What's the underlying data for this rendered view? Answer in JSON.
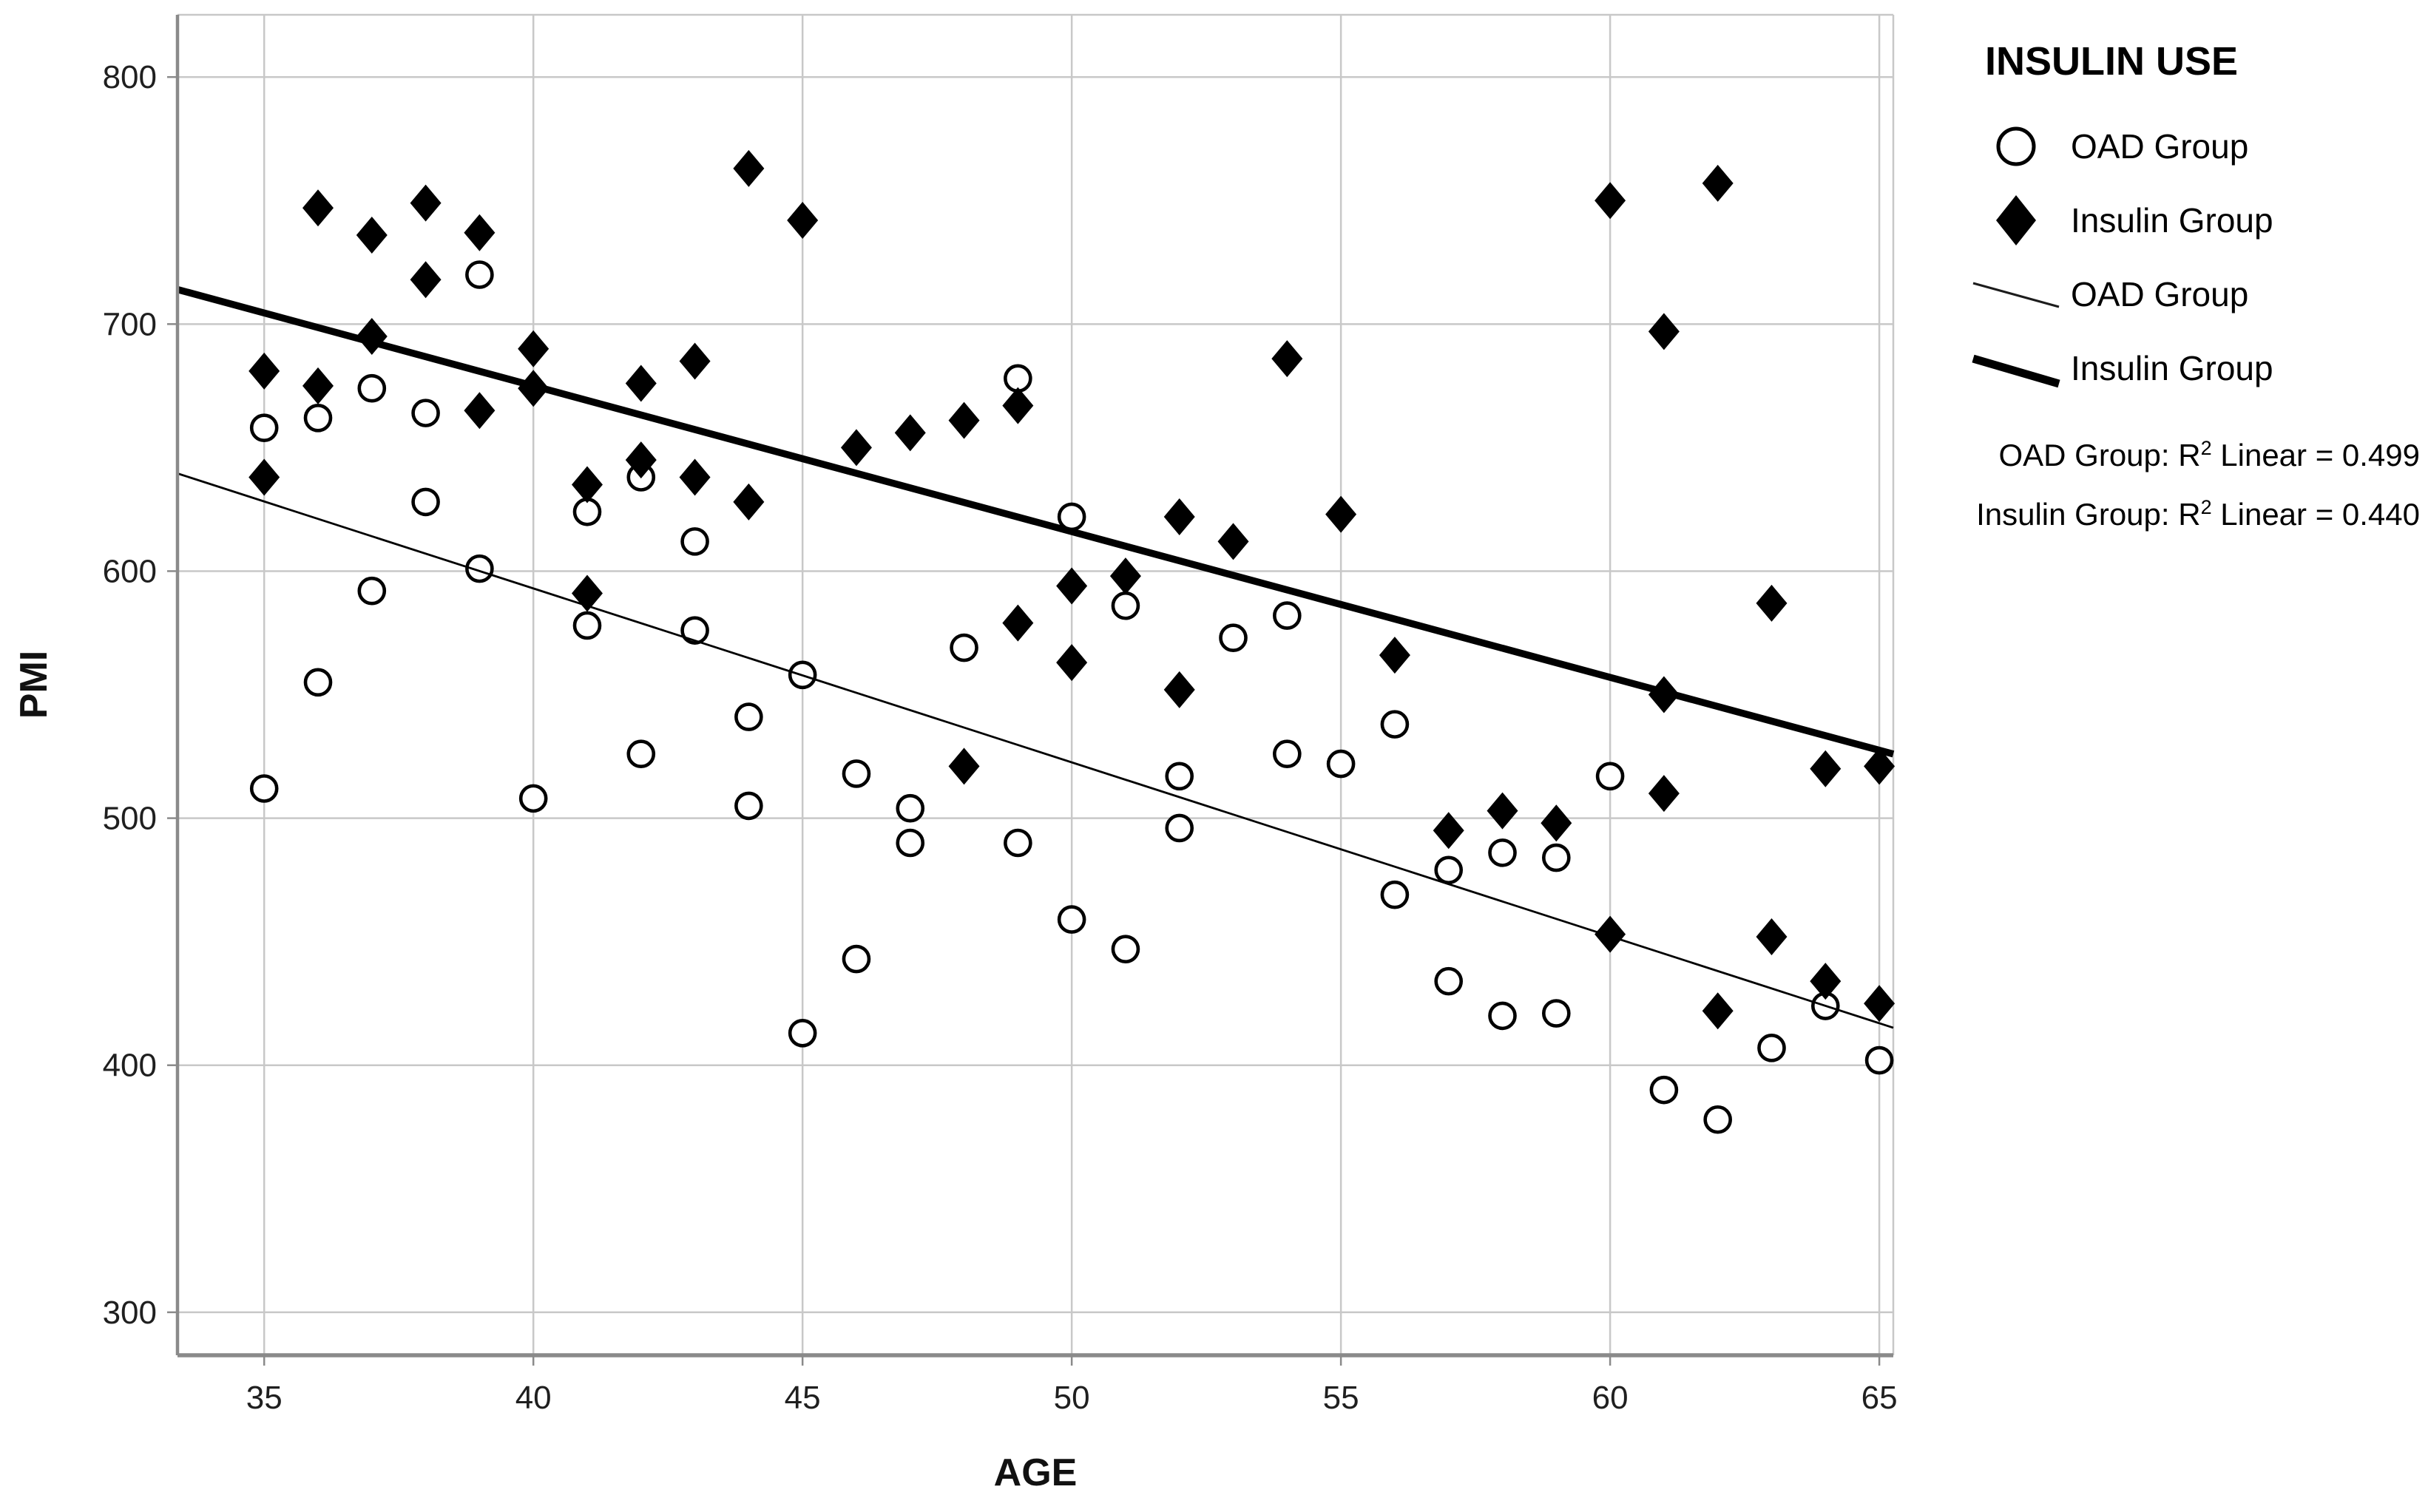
{
  "page": {
    "background": "#ffffff"
  },
  "colors": {
    "marker": "#000000",
    "gridline": "#c8c8c8",
    "axis": "#8a8a8a",
    "text": "#1a1a1a"
  },
  "figure": {
    "legend": {
      "title": "INSULIN USE",
      "items": [
        {
          "label": "OAD Group",
          "marker": "open-circle"
        },
        {
          "label": "Insulin Group",
          "marker": "filled-diamond"
        },
        {
          "label": "OAD Group",
          "marker": "thin-fit-line"
        },
        {
          "label": "Insulin Group",
          "marker": "thick-fit-line"
        }
      ]
    },
    "annotations": [
      {
        "pre": "OAD Group: R",
        "sup": "2",
        "post": " Linear = 0.499"
      },
      {
        "pre": "Insulin Group: R",
        "sup": "2",
        "post": " Linear = 0.440"
      }
    ]
  },
  "chart_data": {
    "type": "scatter",
    "title": "",
    "xlabel": "AGE",
    "ylabel": "PMI",
    "grid": true,
    "legend_position": "top-right",
    "x_ticks": [
      35,
      40,
      45,
      50,
      55,
      60,
      65
    ],
    "y_ticks": [
      800,
      700,
      600,
      500,
      400,
      300
    ],
    "xlim": [
      33.39,
      65.26
    ],
    "ylim": [
      282.6,
      825.2
    ],
    "series": [
      {
        "name": "OAD Group",
        "marker": "open-circle",
        "points": [
          [
            35,
            658
          ],
          [
            35,
            512
          ],
          [
            36,
            662
          ],
          [
            36,
            555
          ],
          [
            37,
            674
          ],
          [
            37,
            592
          ],
          [
            38,
            664
          ],
          [
            38,
            628
          ],
          [
            39,
            720
          ],
          [
            39,
            601
          ],
          [
            40,
            508
          ],
          [
            41,
            624
          ],
          [
            41,
            578
          ],
          [
            42,
            638
          ],
          [
            42,
            526
          ],
          [
            43,
            612
          ],
          [
            43,
            576
          ],
          [
            44,
            541
          ],
          [
            44,
            505
          ],
          [
            45,
            558
          ],
          [
            45,
            413
          ],
          [
            46,
            518
          ],
          [
            46,
            443
          ],
          [
            47,
            504
          ],
          [
            47,
            490
          ],
          [
            48,
            569
          ],
          [
            49,
            678
          ],
          [
            49,
            490
          ],
          [
            50,
            622
          ],
          [
            50,
            459
          ],
          [
            51,
            586
          ],
          [
            51,
            447
          ],
          [
            52,
            517
          ],
          [
            52,
            496
          ],
          [
            53,
            573
          ],
          [
            54,
            582
          ],
          [
            54,
            526
          ],
          [
            55,
            522
          ],
          [
            56,
            538
          ],
          [
            56,
            469
          ],
          [
            57,
            479
          ],
          [
            57,
            434
          ],
          [
            58,
            486
          ],
          [
            58,
            420
          ],
          [
            59,
            484
          ],
          [
            59,
            421
          ],
          [
            60,
            517
          ],
          [
            61,
            390
          ],
          [
            62,
            378
          ],
          [
            63,
            407
          ],
          [
            64,
            424
          ],
          [
            65,
            402
          ]
        ]
      },
      {
        "name": "Insulin Group",
        "marker": "filled-diamond",
        "points": [
          [
            35,
            681
          ],
          [
            35,
            638
          ],
          [
            36,
            747
          ],
          [
            36,
            675
          ],
          [
            37,
            736
          ],
          [
            37,
            695
          ],
          [
            38,
            749
          ],
          [
            38,
            718
          ],
          [
            39,
            737
          ],
          [
            39,
            665
          ],
          [
            40,
            690
          ],
          [
            40,
            674
          ],
          [
            41,
            635
          ],
          [
            41,
            591
          ],
          [
            42,
            676
          ],
          [
            42,
            645
          ],
          [
            43,
            685
          ],
          [
            43,
            638
          ],
          [
            44,
            763
          ],
          [
            44,
            628
          ],
          [
            45,
            742
          ],
          [
            46,
            650
          ],
          [
            47,
            656
          ],
          [
            48,
            661
          ],
          [
            48,
            521
          ],
          [
            49,
            667
          ],
          [
            49,
            579
          ],
          [
            50,
            594
          ],
          [
            50,
            563
          ],
          [
            51,
            598
          ],
          [
            52,
            622
          ],
          [
            52,
            552
          ],
          [
            53,
            612
          ],
          [
            54,
            686
          ],
          [
            55,
            623
          ],
          [
            56,
            566
          ],
          [
            57,
            495
          ],
          [
            58,
            503
          ],
          [
            59,
            498
          ],
          [
            60,
            750
          ],
          [
            60,
            453
          ],
          [
            61,
            697
          ],
          [
            61,
            550
          ],
          [
            61,
            510
          ],
          [
            62,
            757
          ],
          [
            62,
            422
          ],
          [
            63,
            587
          ],
          [
            63,
            452
          ],
          [
            64,
            520
          ],
          [
            64,
            434
          ],
          [
            65,
            521
          ],
          [
            65,
            425
          ]
        ]
      }
    ],
    "fit_lines": [
      {
        "name": "OAD Group",
        "style": "thin",
        "slope": -7.04,
        "intercept": 874.6,
        "r2": 0.499
      },
      {
        "name": "Insulin Group",
        "style": "thick",
        "slope": -5.9,
        "intercept": 911.0,
        "r2": 0.44
      }
    ]
  }
}
